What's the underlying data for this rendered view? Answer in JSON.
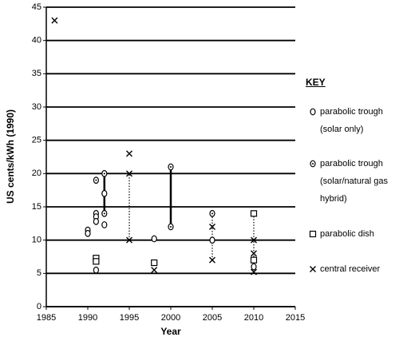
{
  "chart_data": {
    "type": "scatter",
    "y_label": "US cents/kWh (1990)",
    "x_label": "Year",
    "legend_title": "KEY",
    "xlim": [
      1985,
      2015
    ],
    "xticks": [
      1985,
      1990,
      1995,
      2000,
      2005,
      2010,
      2015
    ],
    "ylim": [
      0,
      45
    ],
    "yticks": [
      0,
      5,
      10,
      15,
      20,
      25,
      30,
      35,
      40,
      45
    ],
    "grid": true,
    "series": [
      {
        "name": "parabolic trough (solar only)",
        "marker": "circle",
        "color": "#000000",
        "x": [
          1990,
          1990,
          1991,
          1991,
          1991,
          1991,
          1992,
          1992,
          1998,
          2005,
          2010
        ],
        "values": [
          11.5,
          11,
          14,
          13.5,
          12.8,
          5.5,
          17,
          12.3,
          10.2,
          10,
          6
        ]
      },
      {
        "name": "parabolic trough (solar/natural gas hybrid)",
        "marker": "circle-dot",
        "color": "#000000",
        "x": [
          1991,
          1992,
          1992,
          2000,
          2000,
          2005
        ],
        "values": [
          19,
          20,
          14,
          21,
          12,
          14
        ]
      },
      {
        "name": "parabolic dish",
        "marker": "square",
        "color": "#000000",
        "x": [
          1991,
          1991,
          1998,
          2010,
          2010
        ],
        "values": [
          7.3,
          6.8,
          6.6,
          14,
          7
        ]
      },
      {
        "name": "central receiver",
        "marker": "x",
        "color": "#000000",
        "x": [
          1986,
          1995,
          1995,
          1995,
          1998,
          2005,
          2005,
          2010,
          2010,
          2010
        ],
        "values": [
          43,
          23,
          20,
          10,
          5.5,
          12,
          7,
          10,
          8,
          5.2
        ]
      }
    ],
    "ranges": [
      {
        "x": 1992,
        "low": 14,
        "high": 20,
        "style": "solid"
      },
      {
        "x": 1995,
        "low": 10,
        "high": 20,
        "style": "dotted"
      },
      {
        "x": 2000,
        "low": 12,
        "high": 21,
        "style": "solid"
      },
      {
        "x": 2005,
        "low": 7,
        "high": 14,
        "style": "dotted"
      },
      {
        "x": 2010,
        "low": 5,
        "high": 14,
        "style": "dotted"
      }
    ]
  }
}
